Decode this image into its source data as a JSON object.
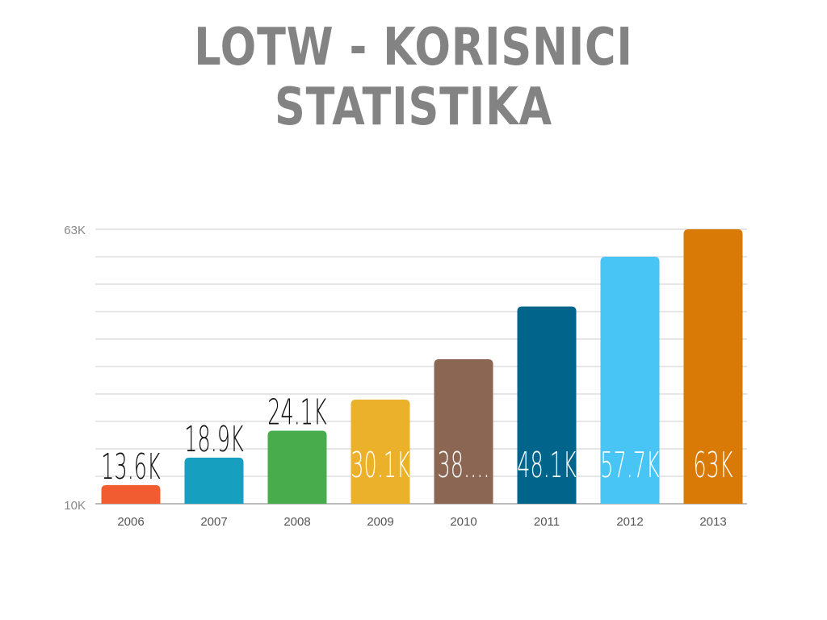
{
  "title": "LOTW - KORISNICI STATISTIKA",
  "chart_data": {
    "type": "bar",
    "title": "LOTW - KORISNICI STATISTIKA",
    "xlabel": "",
    "ylabel": "",
    "ylim": [
      10,
      63
    ],
    "y_ticks": [
      "10K",
      "63K"
    ],
    "grid": true,
    "categories": [
      "2006",
      "2007",
      "2008",
      "2009",
      "2010",
      "2011",
      "2012",
      "2013"
    ],
    "values": [
      13.6,
      18.9,
      24.1,
      30.1,
      37.9,
      48.1,
      57.7,
      63
    ],
    "data_labels": [
      "13.6K",
      "18.9K",
      "24.1K",
      "30.1K",
      "38....",
      "48.1K",
      "57.7K",
      "63K"
    ],
    "colors": [
      "#F15D30",
      "#169FBE",
      "#48AC4C",
      "#EBB12A",
      "#8A6653",
      "#00648B",
      "#48C5F5",
      "#D97A06"
    ]
  }
}
